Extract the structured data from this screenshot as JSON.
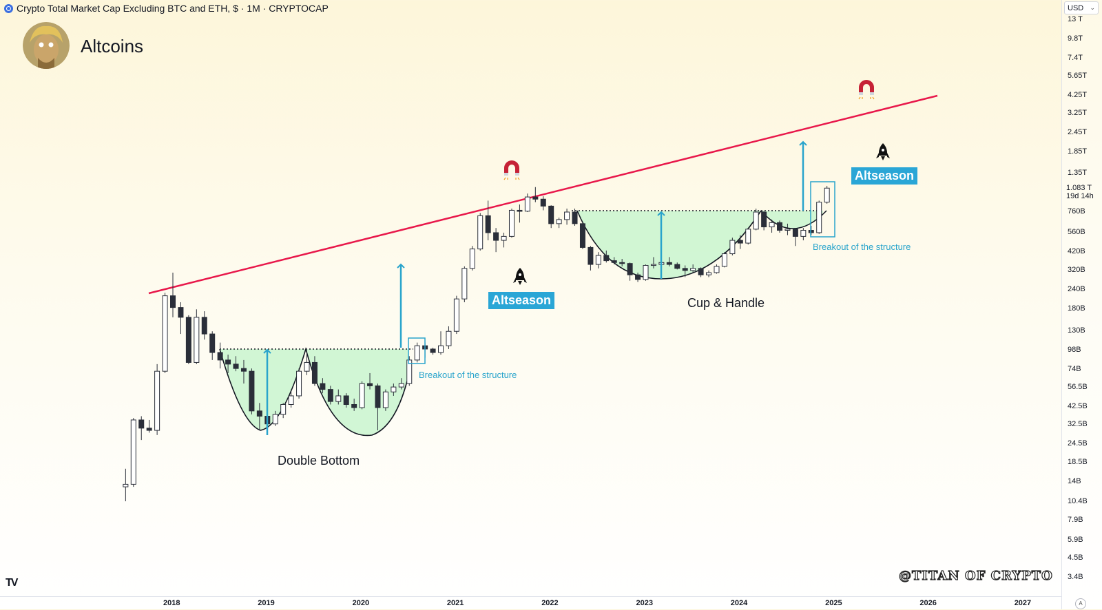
{
  "header": {
    "title": "Crypto Total Market Cap Excluding BTC and ETH, $ · 1M · CRYPTOCAP",
    "brand": "Altcoins",
    "currency": "USD",
    "watermark": "@TITAN OF CRYPTO"
  },
  "chart_data": {
    "type": "candlestick",
    "scale": "log",
    "interval": "1M",
    "x_tick_labels": [
      "2018",
      "2019",
      "2020",
      "2021",
      "2022",
      "2023",
      "2024",
      "2025",
      "2026",
      "2027"
    ],
    "y_tick_labels": [
      "13 T",
      "9.8T",
      "7.4T",
      "5.65T",
      "4.25T",
      "3.25T",
      "2.45T",
      "1.85T",
      "1.35T",
      "760B",
      "560B",
      "420B",
      "320B",
      "240B",
      "180B",
      "130B",
      "98B",
      "74B",
      "56.5B",
      "42.5B",
      "32.5B",
      "24.5B",
      "18.5B",
      "14B",
      "10.4B",
      "7.9B",
      "5.9B",
      "4.5B",
      "3.4B"
    ],
    "last_price": {
      "value": "1.083 T",
      "countdown": "19d 14h"
    },
    "candles": [
      {
        "date": "2017-07",
        "o": 13,
        "h": 17,
        "l": 10.5,
        "c": 13.5
      },
      {
        "date": "2017-08",
        "o": 13.5,
        "h": 36,
        "l": 13,
        "c": 35
      },
      {
        "date": "2017-09",
        "o": 35,
        "h": 37,
        "l": 26,
        "c": 31
      },
      {
        "date": "2017-10",
        "o": 31,
        "h": 35,
        "l": 29,
        "c": 30
      },
      {
        "date": "2017-11",
        "o": 30,
        "h": 80,
        "l": 28,
        "c": 72
      },
      {
        "date": "2017-12",
        "o": 72,
        "h": 230,
        "l": 70,
        "c": 220
      },
      {
        "date": "2018-01",
        "o": 220,
        "h": 310,
        "l": 160,
        "c": 185
      },
      {
        "date": "2018-02",
        "o": 185,
        "h": 200,
        "l": 125,
        "c": 160
      },
      {
        "date": "2018-03",
        "o": 160,
        "h": 165,
        "l": 80,
        "c": 82
      },
      {
        "date": "2018-04",
        "o": 82,
        "h": 180,
        "l": 80,
        "c": 160
      },
      {
        "date": "2018-05",
        "o": 160,
        "h": 175,
        "l": 115,
        "c": 125
      },
      {
        "date": "2018-06",
        "o": 125,
        "h": 130,
        "l": 85,
        "c": 95
      },
      {
        "date": "2018-07",
        "o": 95,
        "h": 110,
        "l": 75,
        "c": 85
      },
      {
        "date": "2018-08",
        "o": 85,
        "h": 92,
        "l": 70,
        "c": 80
      },
      {
        "date": "2018-09",
        "o": 80,
        "h": 90,
        "l": 72,
        "c": 75
      },
      {
        "date": "2018-10",
        "o": 75,
        "h": 85,
        "l": 60,
        "c": 72
      },
      {
        "date": "2018-11",
        "o": 72,
        "h": 75,
        "l": 38,
        "c": 40
      },
      {
        "date": "2018-12",
        "o": 40,
        "h": 45,
        "l": 30,
        "c": 37
      },
      {
        "date": "2019-01",
        "o": 37,
        "h": 40,
        "l": 30,
        "c": 33
      },
      {
        "date": "2019-02",
        "o": 33,
        "h": 40,
        "l": 32,
        "c": 38
      },
      {
        "date": "2019-03",
        "o": 38,
        "h": 45,
        "l": 36,
        "c": 44
      },
      {
        "date": "2019-04",
        "o": 44,
        "h": 55,
        "l": 42,
        "c": 50
      },
      {
        "date": "2019-05",
        "o": 50,
        "h": 75,
        "l": 48,
        "c": 72
      },
      {
        "date": "2019-06",
        "o": 72,
        "h": 98,
        "l": 68,
        "c": 82
      },
      {
        "date": "2019-07",
        "o": 82,
        "h": 90,
        "l": 58,
        "c": 60
      },
      {
        "date": "2019-08",
        "o": 60,
        "h": 65,
        "l": 52,
        "c": 55
      },
      {
        "date": "2019-09",
        "o": 55,
        "h": 58,
        "l": 44,
        "c": 46
      },
      {
        "date": "2019-10",
        "o": 46,
        "h": 55,
        "l": 44,
        "c": 50
      },
      {
        "date": "2019-11",
        "o": 50,
        "h": 52,
        "l": 42,
        "c": 44
      },
      {
        "date": "2019-12",
        "o": 44,
        "h": 48,
        "l": 40,
        "c": 42
      },
      {
        "date": "2020-01",
        "o": 42,
        "h": 62,
        "l": 41,
        "c": 60
      },
      {
        "date": "2020-02",
        "o": 60,
        "h": 70,
        "l": 55,
        "c": 58
      },
      {
        "date": "2020-03",
        "o": 58,
        "h": 60,
        "l": 30,
        "c": 42
      },
      {
        "date": "2020-04",
        "o": 42,
        "h": 55,
        "l": 40,
        "c": 53
      },
      {
        "date": "2020-05",
        "o": 53,
        "h": 60,
        "l": 50,
        "c": 57
      },
      {
        "date": "2020-06",
        "o": 57,
        "h": 65,
        "l": 55,
        "c": 60
      },
      {
        "date": "2020-07",
        "o": 60,
        "h": 90,
        "l": 58,
        "c": 85
      },
      {
        "date": "2020-08",
        "o": 85,
        "h": 110,
        "l": 82,
        "c": 105
      },
      {
        "date": "2020-09",
        "o": 105,
        "h": 110,
        "l": 88,
        "c": 100
      },
      {
        "date": "2020-10",
        "o": 100,
        "h": 102,
        "l": 92,
        "c": 95
      },
      {
        "date": "2020-11",
        "o": 95,
        "h": 130,
        "l": 92,
        "c": 105
      },
      {
        "date": "2020-12",
        "o": 105,
        "h": 140,
        "l": 100,
        "c": 130
      },
      {
        "date": "2021-01",
        "o": 130,
        "h": 220,
        "l": 125,
        "c": 210
      },
      {
        "date": "2021-02",
        "o": 210,
        "h": 340,
        "l": 200,
        "c": 330
      },
      {
        "date": "2021-03",
        "o": 330,
        "h": 460,
        "l": 320,
        "c": 440
      },
      {
        "date": "2021-04",
        "o": 440,
        "h": 750,
        "l": 430,
        "c": 720
      },
      {
        "date": "2021-05",
        "o": 720,
        "h": 900,
        "l": 500,
        "c": 560
      },
      {
        "date": "2021-06",
        "o": 560,
        "h": 600,
        "l": 420,
        "c": 500
      },
      {
        "date": "2021-07",
        "o": 500,
        "h": 560,
        "l": 450,
        "c": 530
      },
      {
        "date": "2021-08",
        "o": 530,
        "h": 800,
        "l": 520,
        "c": 780
      },
      {
        "date": "2021-09",
        "o": 780,
        "h": 850,
        "l": 650,
        "c": 770
      },
      {
        "date": "2021-10",
        "o": 770,
        "h": 1000,
        "l": 760,
        "c": 950
      },
      {
        "date": "2021-11",
        "o": 950,
        "h": 1100,
        "l": 880,
        "c": 920
      },
      {
        "date": "2021-12",
        "o": 920,
        "h": 960,
        "l": 780,
        "c": 830
      },
      {
        "date": "2022-01",
        "o": 830,
        "h": 840,
        "l": 600,
        "c": 640
      },
      {
        "date": "2022-02",
        "o": 640,
        "h": 700,
        "l": 600,
        "c": 680
      },
      {
        "date": "2022-03",
        "o": 680,
        "h": 800,
        "l": 630,
        "c": 760
      },
      {
        "date": "2022-04",
        "o": 760,
        "h": 800,
        "l": 620,
        "c": 640
      },
      {
        "date": "2022-05",
        "o": 640,
        "h": 660,
        "l": 440,
        "c": 450
      },
      {
        "date": "2022-06",
        "o": 450,
        "h": 460,
        "l": 320,
        "c": 350
      },
      {
        "date": "2022-07",
        "o": 350,
        "h": 420,
        "l": 330,
        "c": 400
      },
      {
        "date": "2022-08",
        "o": 400,
        "h": 430,
        "l": 360,
        "c": 370
      },
      {
        "date": "2022-09",
        "o": 370,
        "h": 390,
        "l": 350,
        "c": 360
      },
      {
        "date": "2022-10",
        "o": 360,
        "h": 380,
        "l": 340,
        "c": 355
      },
      {
        "date": "2022-11",
        "o": 355,
        "h": 360,
        "l": 275,
        "c": 300
      },
      {
        "date": "2022-12",
        "o": 300,
        "h": 310,
        "l": 270,
        "c": 280
      },
      {
        "date": "2023-01",
        "o": 280,
        "h": 350,
        "l": 275,
        "c": 345
      },
      {
        "date": "2023-02",
        "o": 345,
        "h": 390,
        "l": 330,
        "c": 350
      },
      {
        "date": "2023-03",
        "o": 350,
        "h": 380,
        "l": 310,
        "c": 360
      },
      {
        "date": "2023-04",
        "o": 360,
        "h": 390,
        "l": 340,
        "c": 350
      },
      {
        "date": "2023-05",
        "o": 350,
        "h": 360,
        "l": 325,
        "c": 330
      },
      {
        "date": "2023-06",
        "o": 330,
        "h": 345,
        "l": 290,
        "c": 320
      },
      {
        "date": "2023-07",
        "o": 320,
        "h": 350,
        "l": 310,
        "c": 330
      },
      {
        "date": "2023-08",
        "o": 330,
        "h": 335,
        "l": 290,
        "c": 300
      },
      {
        "date": "2023-09",
        "o": 300,
        "h": 320,
        "l": 290,
        "c": 310
      },
      {
        "date": "2023-10",
        "o": 310,
        "h": 350,
        "l": 305,
        "c": 340
      },
      {
        "date": "2023-11",
        "o": 340,
        "h": 420,
        "l": 335,
        "c": 410
      },
      {
        "date": "2023-12",
        "o": 410,
        "h": 520,
        "l": 400,
        "c": 500
      },
      {
        "date": "2024-01",
        "o": 500,
        "h": 540,
        "l": 440,
        "c": 480
      },
      {
        "date": "2024-02",
        "o": 480,
        "h": 600,
        "l": 470,
        "c": 590
      },
      {
        "date": "2024-03",
        "o": 590,
        "h": 800,
        "l": 580,
        "c": 760
      },
      {
        "date": "2024-04",
        "o": 760,
        "h": 770,
        "l": 580,
        "c": 610
      },
      {
        "date": "2024-05",
        "o": 610,
        "h": 680,
        "l": 560,
        "c": 650
      },
      {
        "date": "2024-06",
        "o": 650,
        "h": 670,
        "l": 560,
        "c": 580
      },
      {
        "date": "2024-07",
        "o": 580,
        "h": 640,
        "l": 540,
        "c": 590
      },
      {
        "date": "2024-08",
        "o": 590,
        "h": 600,
        "l": 460,
        "c": 530
      },
      {
        "date": "2024-09",
        "o": 530,
        "h": 600,
        "l": 500,
        "c": 580
      },
      {
        "date": "2024-10",
        "o": 580,
        "h": 620,
        "l": 540,
        "c": 560
      },
      {
        "date": "2024-11",
        "o": 560,
        "h": 900,
        "l": 550,
        "c": 880
      },
      {
        "date": "2024-12",
        "o": 880,
        "h": 1120,
        "l": 860,
        "c": 1083
      }
    ]
  },
  "annotations": {
    "double_bottom": "Double Bottom",
    "cup_handle": "Cup & Handle",
    "breakout_1": "Breakout of the structure",
    "breakout_2": "Breakout of the structure",
    "altseason_1": "Altseason",
    "altseason_2": "Altseason",
    "icons": [
      "magnet-icon",
      "rocket-icon"
    ]
  },
  "colors": {
    "trendline": "#e8174a",
    "pattern_fill": "#c9f5cf",
    "arrow": "#29a4cc",
    "badge": "#2aa6d6",
    "bull_body": "#ffffff",
    "bear_body": "#2a2e39"
  }
}
